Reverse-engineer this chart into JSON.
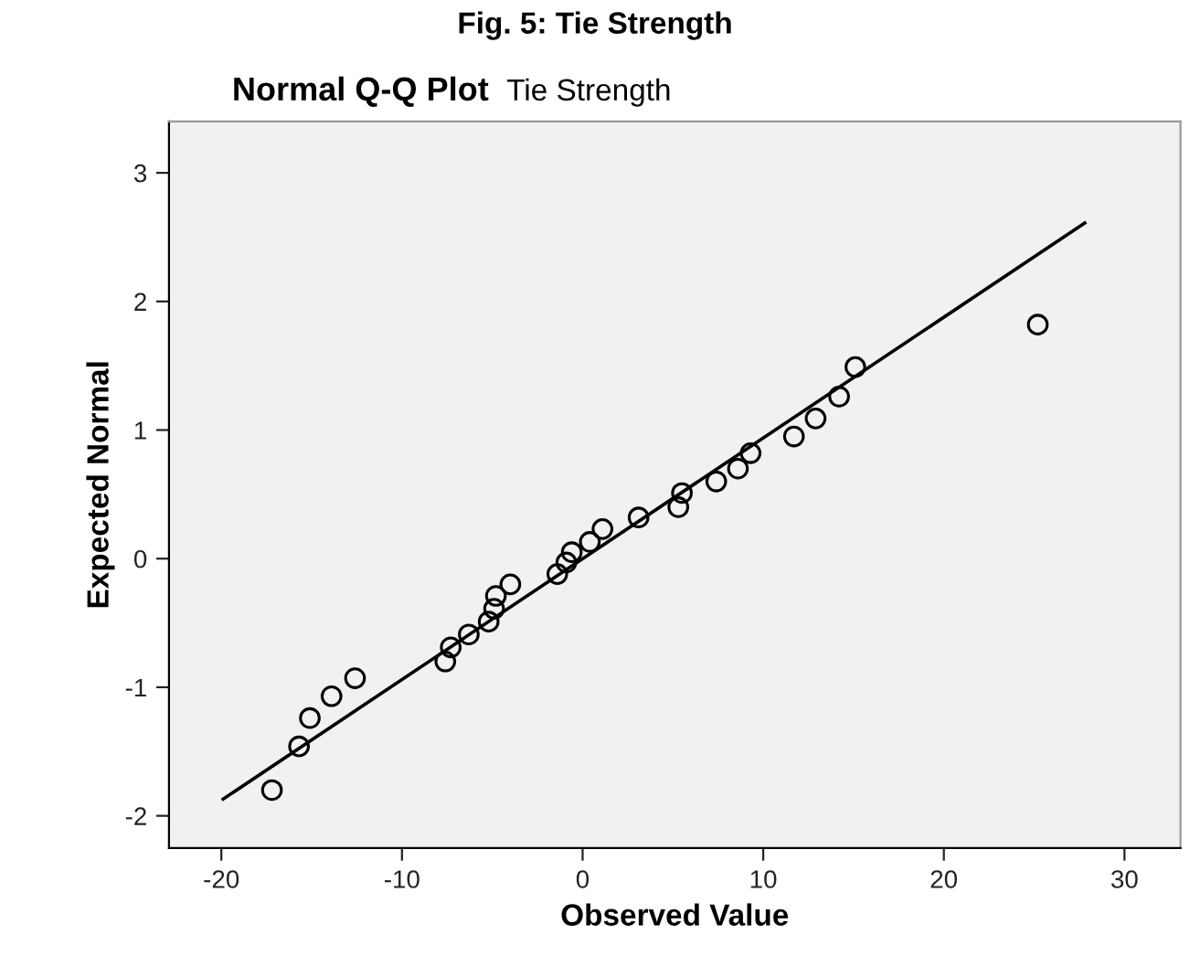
{
  "chart_data": {
    "type": "scatter",
    "title": "Normal Q-Q Plot",
    "subtitle": "Tie Strength",
    "xlabel": "Observed Value",
    "ylabel": "Expected Normal",
    "annotations": [
      "Fig. 5: Tie Strength"
    ],
    "series": [
      {
        "color": "#000000",
        "marker": "circle",
        "x": [
          -17.2,
          -15.7,
          -15.1,
          -13.9,
          -12.6,
          -7.6,
          -7.3,
          -6.3,
          -5.2,
          -4.9,
          -4.8,
          -4.0,
          -1.4,
          -0.9,
          -0.6,
          0.4,
          1.1,
          3.1,
          5.3,
          5.5,
          7.4,
          8.6,
          9.3,
          11.7,
          12.9,
          14.2,
          15.1,
          25.2
        ],
        "values": [
          -1.8,
          -1.46,
          -1.24,
          -1.07,
          -0.93,
          -0.8,
          -0.69,
          -0.59,
          -0.49,
          -0.39,
          -0.29,
          -0.2,
          -0.12,
          -0.03,
          0.05,
          0.13,
          0.23,
          0.32,
          0.4,
          0.51,
          0.6,
          0.7,
          0.82,
          0.95,
          1.09,
          1.26,
          1.49,
          1.82
        ]
      },
      {
        "type": "line",
        "color": "#000000",
        "marker": "none",
        "x": [
          -19.9,
          27.8
        ],
        "values": [
          -1.87,
          2.61
        ]
      }
    ],
    "xlim": [
      -22.9,
      33.1
    ],
    "ylim": [
      -2.25,
      3.4
    ],
    "xticks": [
      -20,
      -10,
      0,
      10,
      20,
      30
    ],
    "yticks": [
      -2,
      -1,
      0,
      1,
      2,
      3
    ],
    "grid": false,
    "legend": false
  }
}
